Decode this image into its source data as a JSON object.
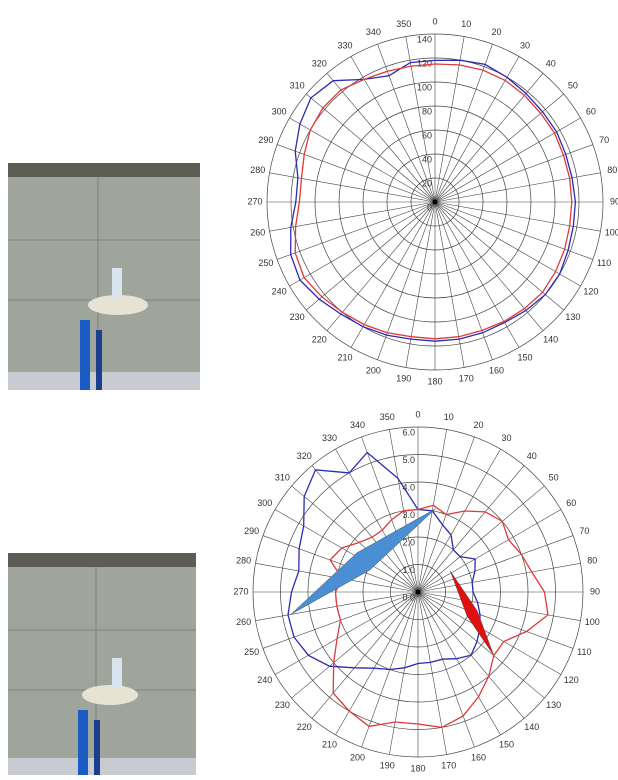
{
  "chart_data": [
    {
      "type": "polar",
      "theta": [
        0,
        10,
        20,
        30,
        40,
        50,
        60,
        70,
        80,
        90,
        100,
        110,
        120,
        130,
        140,
        150,
        160,
        170,
        180,
        190,
        200,
        210,
        220,
        230,
        240,
        250,
        260,
        270,
        280,
        290,
        300,
        310,
        320,
        330,
        340,
        350
      ],
      "rlim": [
        0,
        140
      ],
      "rticks": [
        0,
        20,
        40,
        60,
        80,
        100,
        120,
        140
      ],
      "series": [
        {
          "color": "#2b2bb0",
          "values": [
            118,
            120,
            122,
            120,
            118,
            117,
            117,
            116,
            116,
            117,
            117,
            118,
            120,
            120,
            118,
            116,
            116,
            116,
            116,
            116,
            118,
            120,
            122,
            126,
            130,
            128,
            122,
            116,
            116,
            124,
            130,
            135,
            132,
            118,
            112,
            118
          ]
        },
        {
          "color": "#e03a3a",
          "values": [
            115,
            116,
            117,
            117,
            116,
            115,
            115,
            114,
            114,
            114,
            114,
            115,
            116,
            117,
            116,
            115,
            114,
            114,
            114,
            114,
            116,
            118,
            120,
            123,
            126,
            124,
            118,
            113,
            113,
            116,
            120,
            122,
            122,
            118,
            116,
            115
          ]
        }
      ]
    },
    {
      "type": "polar",
      "theta": [
        0,
        10,
        20,
        30,
        40,
        50,
        60,
        70,
        80,
        90,
        100,
        110,
        120,
        130,
        140,
        150,
        160,
        170,
        180,
        190,
        200,
        210,
        220,
        230,
        240,
        250,
        260,
        270,
        280,
        290,
        300,
        310,
        320,
        330,
        340,
        350
      ],
      "rlim": [
        0,
        6
      ],
      "rticks": [
        {
          "value": 0,
          "label": "0.0"
        },
        {
          "value": 1,
          "label": "1.0"
        },
        {
          "value": 2,
          "label": "2.0"
        },
        {
          "value": 3,
          "label": "3.0"
        },
        {
          "value": 4,
          "label": "4.0"
        },
        {
          "value": 5,
          "label": "5.0"
        },
        {
          "value": 6,
          "label": "6.0"
        }
      ],
      "series": [
        {
          "color": "#2b2bb0",
          "values": [
            3.0,
            3.0,
            2.6,
            2.4,
            2.0,
            2.0,
            2.4,
            2.2,
            2.0,
            2.0,
            2.2,
            2.4,
            2.6,
            2.8,
            3.0,
            2.8,
            2.6,
            2.6,
            2.6,
            2.8,
            3.0,
            3.2,
            3.6,
            4.2,
            4.6,
            4.8,
            4.8,
            4.6,
            4.4,
            4.6,
            4.8,
            5.4,
            5.8,
            5.0,
            5.4,
            4.2
          ]
        },
        {
          "color": "#e03a3a",
          "values": [
            3.0,
            3.2,
            3.0,
            3.4,
            3.8,
            4.0,
            3.8,
            4.0,
            4.2,
            4.6,
            4.8,
            4.2,
            3.6,
            3.6,
            4.0,
            4.4,
            4.8,
            5.0,
            4.8,
            4.8,
            5.2,
            5.0,
            4.8,
            4.0,
            3.4,
            3.0,
            3.0,
            3.0,
            2.8,
            3.4,
            3.2,
            2.8,
            2.6,
            2.6,
            2.8,
            3.0
          ]
        }
      ],
      "vectors": [
        {
          "color": "#4a8fd4",
          "start": {
            "angle": 260,
            "r": 4.7
          },
          "end": {
            "angle": 12,
            "r": 3.1
          }
        },
        {
          "color": "#e01010",
          "start": {
            "angle": 57,
            "r": 1.4
          },
          "end": {
            "angle": 130,
            "r": 3.6
          }
        }
      ]
    }
  ]
}
